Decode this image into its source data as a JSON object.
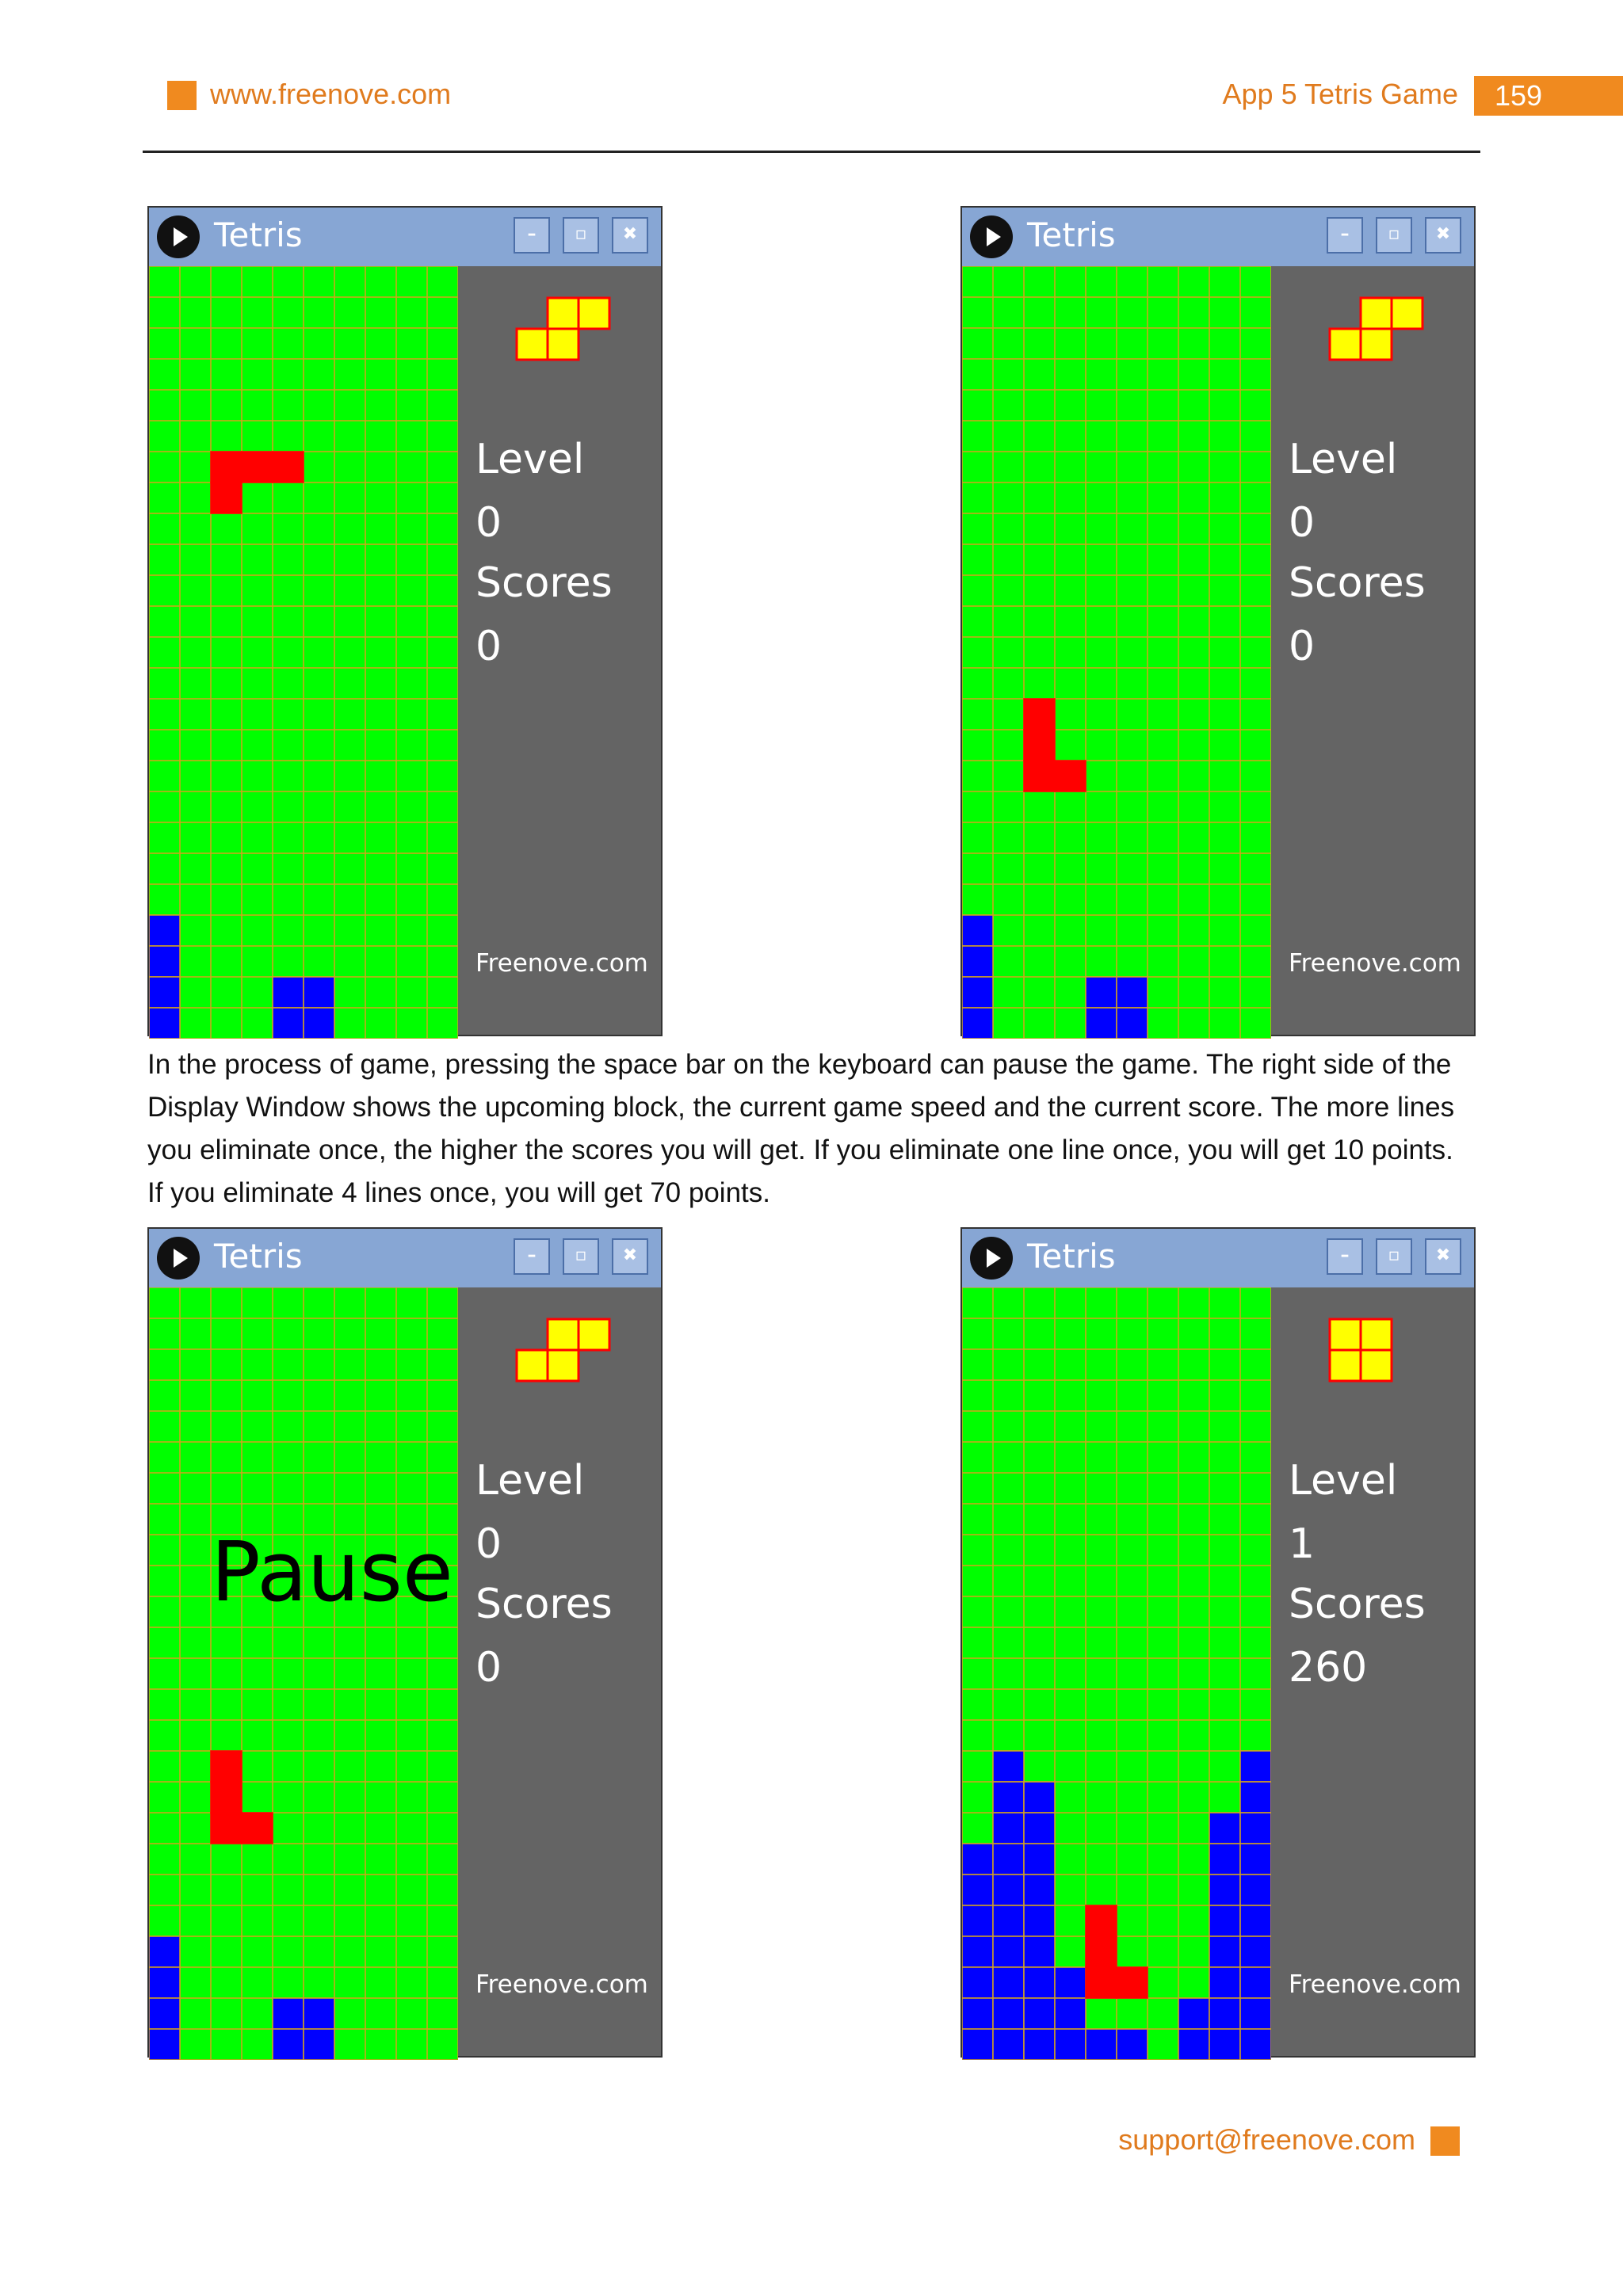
{
  "header": {
    "url": "www.freenove.com",
    "chapter": "App 5 Tetris Game",
    "page_number": "159"
  },
  "paragraph": [
    "In the process of game, pressing the space bar on the keyboard can pause the game. The right side of the",
    "Display Window shows the upcoming block, the current game speed and the current score. The more lines",
    "you eliminate once, the higher the scores you will get. If you eliminate one line once, you will get 10 points.",
    "If you eliminate 4 lines once, you will get 70 points."
  ],
  "footer": {
    "email": "support@freenove.com"
  },
  "colors": {
    "accent": "#f08a1f",
    "board_bg": "#00ff00",
    "grid_line": "#d4a21f",
    "red_block": "#ff0000",
    "blue_block": "#0000ff",
    "next_block": "#ffff00",
    "next_outline": "#ff0000",
    "side_panel": "#646464",
    "titlebar": "#87a6d4"
  },
  "windows": [
    {
      "title": "Tetris",
      "icon": "play-circle-icon",
      "buttons": [
        "minimize-icon",
        "maximize-icon",
        "close-icon"
      ],
      "level_label": "Level",
      "level": "0",
      "scores_label": "Scores",
      "scores": "0",
      "brand": "Freenove.com",
      "pause_text": "",
      "grid": {
        "cols": 10,
        "rows": 25
      },
      "next_cells": [
        [
          1,
          0
        ],
        [
          2,
          0
        ],
        [
          0,
          1
        ],
        [
          1,
          1
        ]
      ],
      "red_cells": [
        [
          2,
          6
        ],
        [
          3,
          6
        ],
        [
          4,
          6
        ],
        [
          2,
          7
        ]
      ],
      "blue_cells": [
        [
          0,
          21
        ],
        [
          0,
          22
        ],
        [
          0,
          23
        ],
        [
          0,
          24
        ],
        [
          4,
          23
        ],
        [
          5,
          23
        ],
        [
          4,
          24
        ],
        [
          5,
          24
        ]
      ]
    },
    {
      "title": "Tetris",
      "icon": "play-circle-icon",
      "buttons": [
        "minimize-icon",
        "maximize-icon",
        "close-icon"
      ],
      "level_label": "Level",
      "level": "0",
      "scores_label": "Scores",
      "scores": "0",
      "brand": "Freenove.com",
      "pause_text": "",
      "grid": {
        "cols": 10,
        "rows": 25
      },
      "next_cells": [
        [
          1,
          0
        ],
        [
          2,
          0
        ],
        [
          0,
          1
        ],
        [
          1,
          1
        ]
      ],
      "red_cells": [
        [
          2,
          14
        ],
        [
          2,
          15
        ],
        [
          2,
          16
        ],
        [
          3,
          16
        ]
      ],
      "blue_cells": [
        [
          0,
          21
        ],
        [
          0,
          22
        ],
        [
          0,
          23
        ],
        [
          0,
          24
        ],
        [
          4,
          23
        ],
        [
          5,
          23
        ],
        [
          4,
          24
        ],
        [
          5,
          24
        ]
      ]
    },
    {
      "title": "Tetris",
      "icon": "play-circle-icon",
      "buttons": [
        "minimize-icon",
        "maximize-icon",
        "close-icon"
      ],
      "level_label": "Level",
      "level": "0",
      "scores_label": "Scores",
      "scores": "0",
      "brand": "Freenove.com",
      "pause_text": "Pause",
      "grid": {
        "cols": 10,
        "rows": 25
      },
      "next_cells": [
        [
          1,
          0
        ],
        [
          2,
          0
        ],
        [
          0,
          1
        ],
        [
          1,
          1
        ]
      ],
      "red_cells": [
        [
          2,
          15
        ],
        [
          2,
          16
        ],
        [
          2,
          17
        ],
        [
          3,
          17
        ]
      ],
      "blue_cells": [
        [
          0,
          21
        ],
        [
          0,
          22
        ],
        [
          0,
          23
        ],
        [
          0,
          24
        ],
        [
          4,
          23
        ],
        [
          5,
          23
        ],
        [
          4,
          24
        ],
        [
          5,
          24
        ]
      ]
    },
    {
      "title": "Tetris",
      "icon": "play-circle-icon",
      "buttons": [
        "minimize-icon",
        "maximize-icon",
        "close-icon"
      ],
      "level_label": "Level",
      "level": "1",
      "scores_label": "Scores",
      "scores": "260",
      "brand": "Freenove.com",
      "pause_text": "",
      "grid": {
        "cols": 10,
        "rows": 25
      },
      "next_cells": [
        [
          0,
          0
        ],
        [
          1,
          0
        ],
        [
          0,
          1
        ],
        [
          1,
          1
        ]
      ],
      "red_cells": [
        [
          4,
          20
        ],
        [
          4,
          21
        ],
        [
          4,
          22
        ],
        [
          5,
          22
        ]
      ],
      "blue_cells": [
        [
          1,
          15
        ],
        [
          9,
          15
        ],
        [
          1,
          16
        ],
        [
          2,
          16
        ],
        [
          9,
          16
        ],
        [
          1,
          17
        ],
        [
          2,
          17
        ],
        [
          8,
          17
        ],
        [
          9,
          17
        ],
        [
          0,
          18
        ],
        [
          1,
          18
        ],
        [
          2,
          18
        ],
        [
          8,
          18
        ],
        [
          9,
          18
        ],
        [
          0,
          19
        ],
        [
          1,
          19
        ],
        [
          2,
          19
        ],
        [
          8,
          19
        ],
        [
          9,
          19
        ],
        [
          0,
          20
        ],
        [
          1,
          20
        ],
        [
          2,
          20
        ],
        [
          8,
          20
        ],
        [
          9,
          20
        ],
        [
          0,
          21
        ],
        [
          1,
          21
        ],
        [
          2,
          21
        ],
        [
          8,
          21
        ],
        [
          9,
          21
        ],
        [
          0,
          22
        ],
        [
          1,
          22
        ],
        [
          2,
          22
        ],
        [
          3,
          22
        ],
        [
          8,
          22
        ],
        [
          9,
          22
        ],
        [
          0,
          23
        ],
        [
          1,
          23
        ],
        [
          2,
          23
        ],
        [
          3,
          23
        ],
        [
          7,
          23
        ],
        [
          8,
          23
        ],
        [
          9,
          23
        ],
        [
          0,
          24
        ],
        [
          1,
          24
        ],
        [
          2,
          24
        ],
        [
          3,
          24
        ],
        [
          4,
          24
        ],
        [
          5,
          24
        ],
        [
          7,
          24
        ],
        [
          8,
          24
        ],
        [
          9,
          24
        ]
      ]
    }
  ]
}
